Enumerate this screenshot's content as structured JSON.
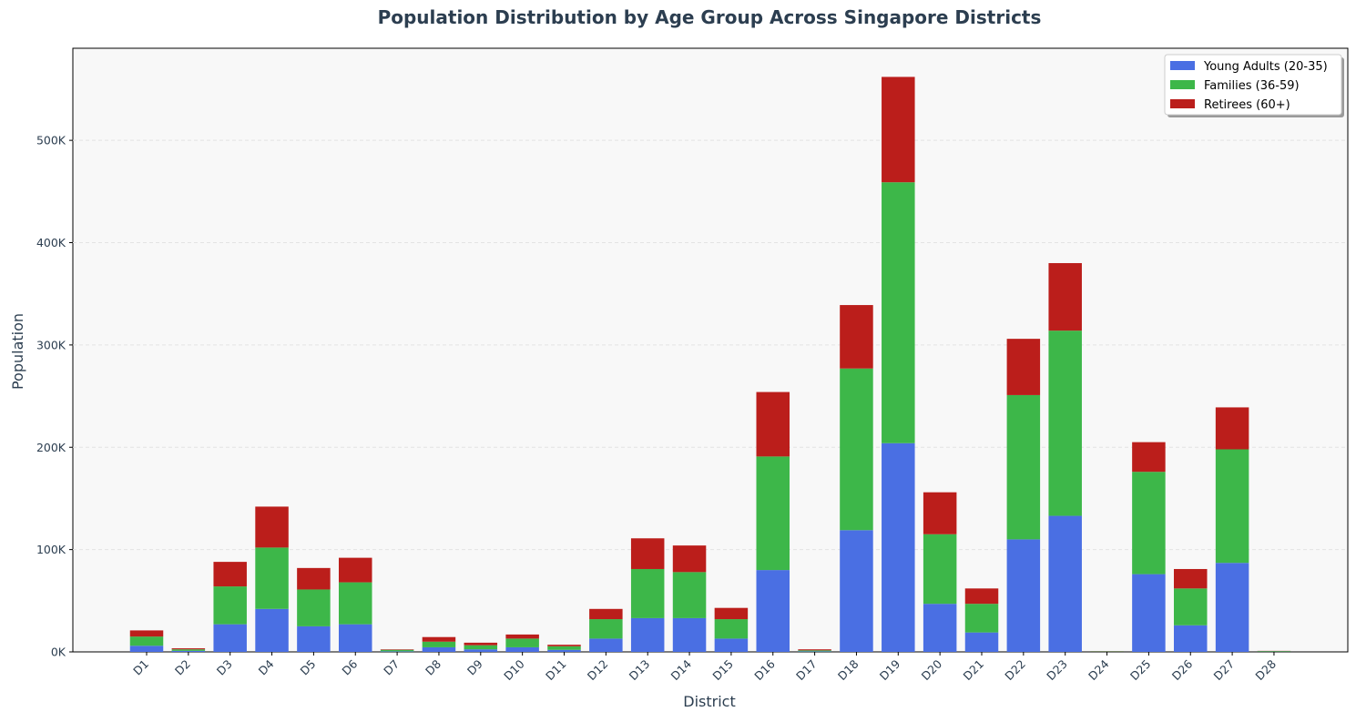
{
  "chart_data": {
    "type": "bar",
    "stacked": true,
    "title": "Population Distribution by Age Group Across Singapore Districts",
    "xlabel": "District",
    "ylabel": "Population",
    "ylim": [
      0,
      590000
    ],
    "yticks": [
      0,
      100000,
      200000,
      300000,
      400000,
      500000
    ],
    "ytick_labels": [
      "0K",
      "100K",
      "200K",
      "300K",
      "400K",
      "500K"
    ],
    "grid": "y, dashed",
    "legend_position": "top-right",
    "categories": [
      "D1",
      "D2",
      "D3",
      "D4",
      "D5",
      "D6",
      "D7",
      "D8",
      "D9",
      "D10",
      "D11",
      "D12",
      "D13",
      "D14",
      "D15",
      "D16",
      "D17",
      "D18",
      "D19",
      "D20",
      "D21",
      "D22",
      "D23",
      "D24",
      "D25",
      "D26",
      "D27",
      "D28"
    ],
    "series": [
      {
        "name": "Young Adults (20-35)",
        "color": "#4a6fe3",
        "values": [
          6000,
          1000,
          27000,
          42000,
          25000,
          27000,
          500,
          4500,
          2500,
          4500,
          2000,
          13000,
          33000,
          33000,
          13000,
          80000,
          500,
          119000,
          204000,
          47000,
          19000,
          110000,
          133000,
          200,
          76000,
          26000,
          87000,
          200
        ]
      },
      {
        "name": "Families (36-59)",
        "color": "#3db749",
        "values": [
          9000,
          1500,
          37000,
          60000,
          36000,
          41000,
          1500,
          5500,
          4000,
          8500,
          3500,
          19000,
          48000,
          45000,
          19000,
          111000,
          1000,
          158000,
          255000,
          68000,
          28000,
          141000,
          181000,
          400,
          100000,
          36000,
          111000,
          600
        ]
      },
      {
        "name": "Retirees (60+)",
        "color": "#bb1e1b",
        "values": [
          6000,
          1000,
          24000,
          40000,
          21000,
          24000,
          500,
          4500,
          2500,
          4000,
          1500,
          10000,
          30000,
          26000,
          11000,
          63000,
          1000,
          62000,
          103000,
          41000,
          15000,
          55000,
          66000,
          200,
          29000,
          19000,
          41000,
          200
        ]
      }
    ]
  }
}
